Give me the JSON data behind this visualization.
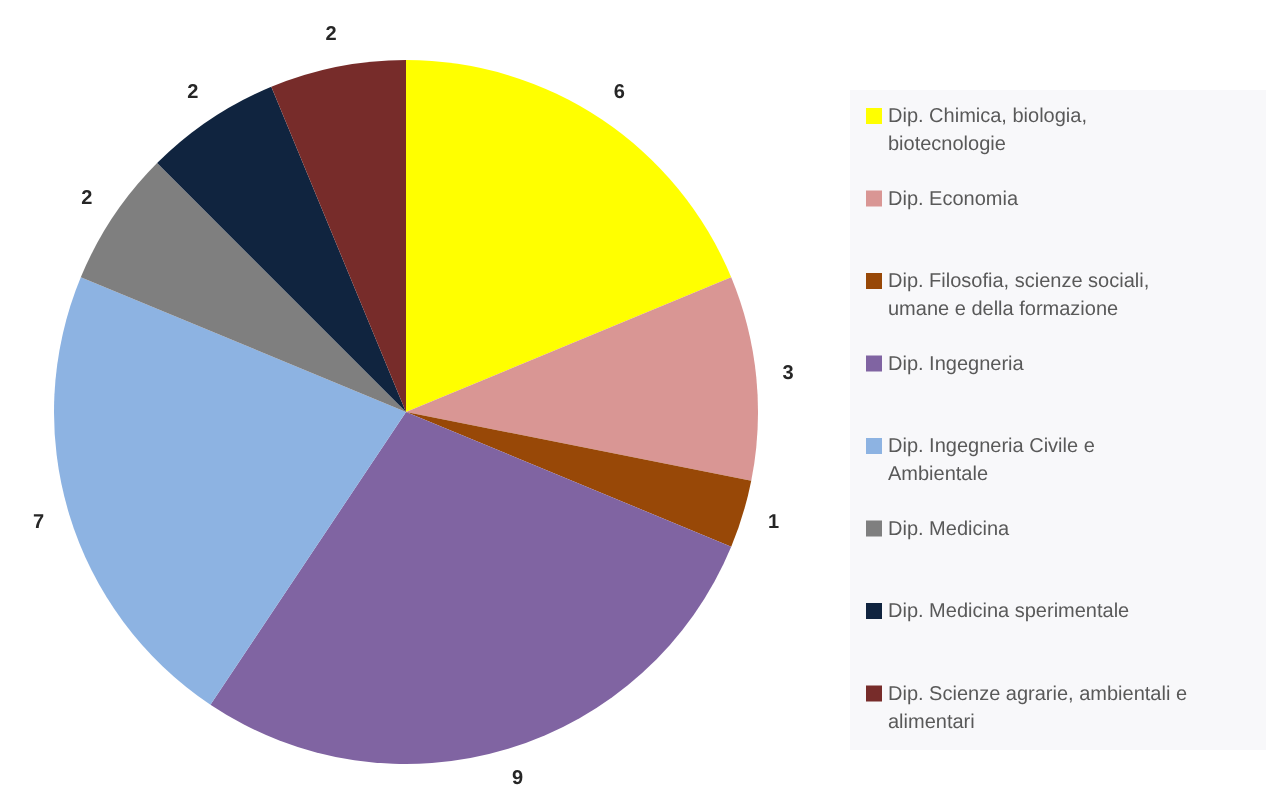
{
  "chart_data": {
    "type": "pie",
    "categories": [
      "Dip. Chimica, biologia, biotecnologie",
      "Dip. Economia",
      "Dip. Filosofia, scienze sociali, umane e della formazione",
      "Dip. Ingegneria",
      "Dip. Ingegneria Civile e Ambientale",
      "Dip. Medicina",
      "Dip. Medicina sperimentale",
      "Dip. Scienze agrarie, ambientali e alimentari"
    ],
    "values": [
      6,
      3,
      1,
      9,
      7,
      2,
      2,
      2
    ],
    "colors": [
      "#ffff00",
      "#d99694",
      "#984807",
      "#8064a2",
      "#8db3e2",
      "#7f7f7f",
      "#10243f",
      "#772c2a"
    ],
    "data_labels": true,
    "legend": "right"
  }
}
